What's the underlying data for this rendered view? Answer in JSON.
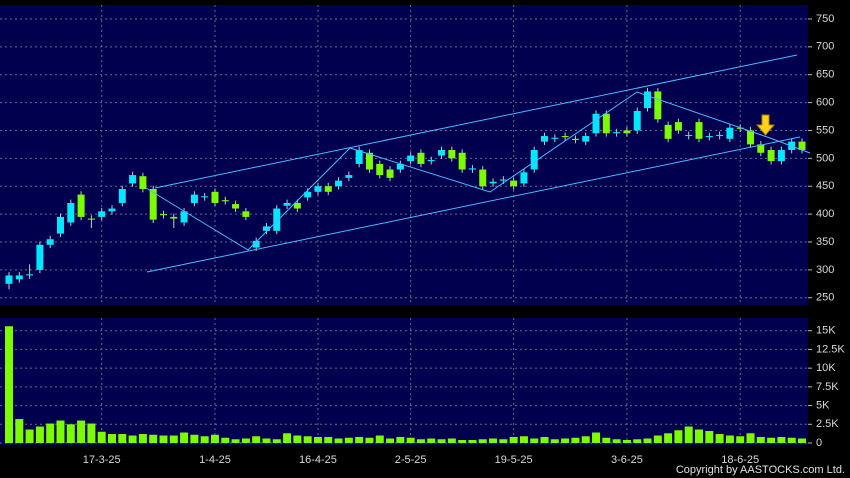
{
  "chart_data": [
    {
      "type": "candlestick",
      "categories": [
        null,
        null,
        null,
        null,
        null,
        null,
        null,
        null,
        null,
        "17-3-25",
        null,
        null,
        null,
        null,
        null,
        null,
        null,
        null,
        null,
        null,
        "1-4-25",
        null,
        null,
        null,
        null,
        null,
        null,
        null,
        null,
        null,
        "16-4-25",
        null,
        null,
        null,
        null,
        null,
        null,
        null,
        null,
        "2-5-25",
        null,
        null,
        null,
        null,
        null,
        null,
        null,
        null,
        null,
        "19-5-25",
        null,
        null,
        null,
        null,
        null,
        null,
        null,
        null,
        null,
        null,
        "3-6-25",
        null,
        null,
        null,
        null,
        null,
        null,
        null,
        null,
        null,
        null,
        "18-6-25",
        null,
        null,
        null,
        null,
        null,
        null
      ],
      "open": [
        275,
        283,
        290,
        300,
        345,
        365,
        385,
        435,
        392,
        395,
        405,
        420,
        455,
        468,
        445,
        400,
        395,
        385,
        420,
        430,
        440,
        425,
        418,
        405,
        340,
        370,
        370,
        415,
        420,
        430,
        440,
        450,
        450,
        465,
        490,
        510,
        490,
        480,
        480,
        495,
        510,
        495,
        505,
        515,
        510,
        480,
        480,
        455,
        460,
        460,
        455,
        480,
        530,
        535,
        540,
        535,
        530,
        545,
        580,
        545,
        550,
        550,
        590,
        620,
        560,
        565,
        540,
        565,
        538,
        540,
        535,
        555,
        550,
        525,
        515,
        495,
        515,
        530
      ],
      "high": [
        296,
        296,
        310,
        351,
        361,
        401,
        426,
        441,
        398,
        411,
        416,
        451,
        476,
        474,
        451,
        406,
        401,
        411,
        441,
        438,
        446,
        431,
        424,
        411,
        358,
        384,
        416,
        426,
        426,
        446,
        456,
        456,
        466,
        476,
        521,
        516,
        496,
        486,
        496,
        511,
        516,
        503,
        521,
        521,
        516,
        488,
        486,
        464,
        468,
        466,
        481,
        521,
        546,
        543,
        546,
        541,
        546,
        586,
        586,
        553,
        556,
        591,
        626,
        626,
        566,
        571,
        548,
        571,
        546,
        548,
        561,
        561,
        556,
        531,
        521,
        521,
        536,
        536
      ],
      "low": [
        265,
        277,
        284,
        294,
        339,
        359,
        379,
        389,
        375,
        389,
        399,
        414,
        449,
        439,
        384,
        392,
        375,
        379,
        414,
        424,
        414,
        417,
        404,
        389,
        334,
        364,
        364,
        409,
        404,
        424,
        434,
        434,
        444,
        459,
        484,
        474,
        464,
        459,
        474,
        489,
        484,
        489,
        499,
        494,
        474,
        474,
        444,
        449,
        454,
        444,
        449,
        474,
        524,
        529,
        532,
        527,
        524,
        539,
        539,
        539,
        539,
        544,
        584,
        564,
        529,
        544,
        534,
        529,
        532,
        534,
        529,
        547,
        519,
        504,
        489,
        489,
        509,
        509
      ],
      "close": [
        290,
        290,
        292,
        345,
        355,
        395,
        420,
        395,
        390,
        405,
        410,
        445,
        470,
        445,
        390,
        398,
        392,
        405,
        435,
        432,
        420,
        423,
        410,
        395,
        352,
        378,
        410,
        420,
        410,
        440,
        450,
        440,
        460,
        470,
        515,
        480,
        470,
        465,
        490,
        505,
        490,
        497,
        515,
        500,
        480,
        482,
        450,
        458,
        462,
        450,
        475,
        515,
        540,
        537,
        538,
        533,
        540,
        580,
        545,
        547,
        545,
        585,
        620,
        570,
        535,
        550,
        542,
        535,
        540,
        542,
        555,
        553,
        525,
        510,
        495,
        515,
        530,
        515
      ],
      "up_color": "#00e8ff",
      "down_color": "#7cfc00",
      "ylim": [
        237,
        775
      ],
      "yticks": [
        250,
        300,
        350,
        400,
        450,
        500,
        550,
        600,
        650,
        700,
        750
      ],
      "grid": true
    },
    {
      "type": "bar",
      "values": [
        15600,
        3200,
        1800,
        2200,
        2600,
        3000,
        2500,
        3000,
        2600,
        1500,
        1200,
        1200,
        1000,
        1200,
        1100,
        1000,
        1000,
        1400,
        1100,
        900,
        1100,
        700,
        500,
        600,
        900,
        600,
        500,
        1300,
        1000,
        900,
        800,
        800,
        600,
        700,
        800,
        700,
        1000,
        600,
        800,
        700,
        500,
        600,
        500,
        600,
        400,
        400,
        500,
        600,
        500,
        800,
        900,
        600,
        800,
        500,
        600,
        700,
        900,
        1400,
        700,
        500,
        400,
        500,
        600,
        1000,
        1300,
        1700,
        2200,
        1800,
        1600,
        1200,
        1000,
        900,
        1300,
        800,
        700,
        800,
        700,
        600
      ],
      "color": "#7cfc00",
      "ylim": [
        0,
        16700
      ],
      "yticks": [
        0,
        {
          "value": 2500,
          "label": "2.5K"
        },
        {
          "value": 5000,
          "label": "5K"
        },
        {
          "value": 7500,
          "label": "7.5K"
        },
        {
          "value": 10000,
          "label": "10K"
        },
        {
          "value": 12500,
          "label": "12.5K"
        },
        {
          "value": 15000,
          "label": "15K"
        }
      ],
      "grid": true,
      "source": "Copyright by AASTOCKS.com Ltd."
    }
  ]
}
